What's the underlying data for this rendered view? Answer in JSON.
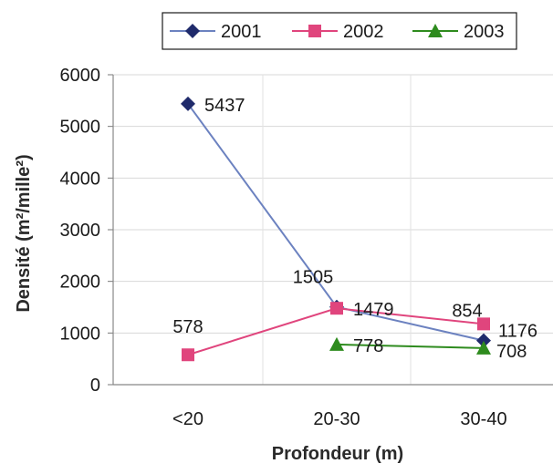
{
  "chart_data": {
    "type": "line",
    "xlabel": "Profondeur (m)",
    "ylabel": "Densité (m²/mille²)",
    "categories": [
      "<20",
      "20-30",
      "30-40"
    ],
    "ylim": [
      0,
      6000
    ],
    "yticks": [
      0,
      1000,
      2000,
      3000,
      4000,
      5000,
      6000
    ],
    "grid": true,
    "legend_position": "top",
    "series": [
      {
        "name": "2001",
        "color": "#1f2a6b",
        "line_color": "#6c82c0",
        "marker": "diamond",
        "values": [
          5437,
          1505,
          854
        ],
        "labels": [
          "5437",
          "1505",
          "854"
        ]
      },
      {
        "name": "2002",
        "color": "#e0457d",
        "line_color": "#e0457d",
        "marker": "square",
        "values": [
          578,
          1479,
          1176
        ],
        "labels": [
          "578",
          "1479",
          "1176"
        ]
      },
      {
        "name": "2003",
        "color": "#2e8b1e",
        "line_color": "#2e8b1e",
        "marker": "triangle",
        "values": [
          null,
          778,
          708
        ],
        "labels": [
          null,
          "778",
          "708"
        ]
      }
    ]
  }
}
